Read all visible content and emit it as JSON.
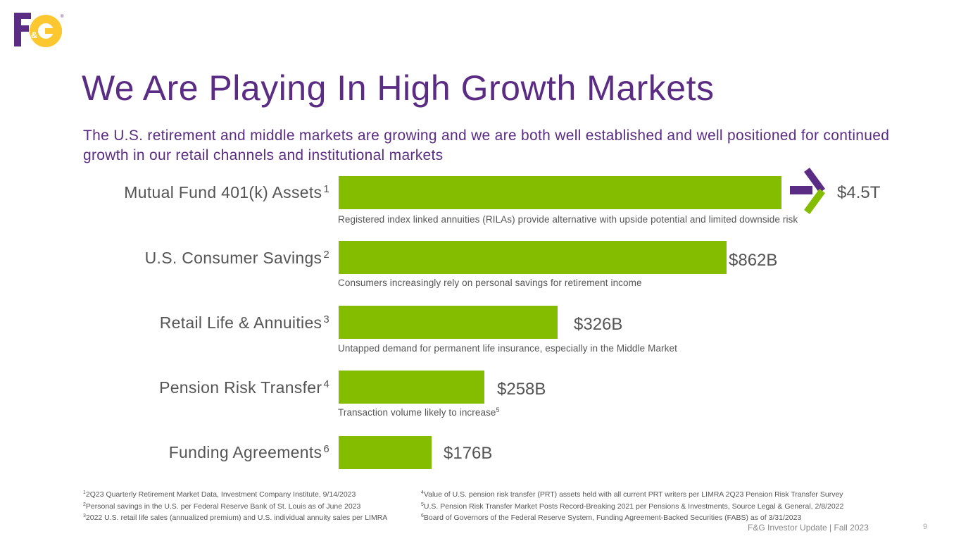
{
  "logo": {
    "text": "F&G",
    "purple": "#5b2c83",
    "gold": "#fdc82f"
  },
  "title": "We Are Playing In High Growth Markets",
  "subtitle": "The U.S. retirement and middle markets are growing and we are both well established and well positioned for continued growth in our retail channels and institutional markets",
  "colors": {
    "accent": "#5b2c83",
    "bar": "#84bd00",
    "text": "#555555"
  },
  "chart_data": {
    "type": "bar",
    "orientation": "horizontal",
    "categories": [
      "Mutual Fund 401(k) Assets",
      "U.S. Consumer Savings",
      "Retail Life & Annuities",
      "Pension Risk Transfer",
      "Funding Agreements"
    ],
    "footnote_refs": [
      "1",
      "2",
      "3",
      "4",
      "6"
    ],
    "value_labels": [
      "$4.5T",
      "$862B",
      "$326B",
      "$258B",
      "$176B"
    ],
    "notes": [
      "Registered index linked annuities (RILAs) provide alternative with upside potential and limited downside risk",
      "Consumers increasingly rely on personal savings for retirement income",
      "Untapped demand for permanent life insurance, especially in the Middle Market",
      "Transaction volume likely to increase",
      ""
    ],
    "note_footnote_refs": [
      "",
      "",
      "",
      "5",
      ""
    ],
    "title": "",
    "xlabel": "",
    "ylabel": ""
  },
  "footnotes": {
    "left": [
      {
        "num": "1",
        "text": "2Q23 Quarterly Retirement Market Data, Investment Company Institute, 9/14/2023"
      },
      {
        "num": "2",
        "text": "Personal savings in the U.S. per Federal Reserve Bank of St. Louis as of June 2023"
      },
      {
        "num": "3",
        "text": "2022 U.S. retail life sales (annualized premium) and U.S. individual annuity sales per LIMRA"
      }
    ],
    "right": [
      {
        "num": "4",
        "text": "Value of U.S. pension risk transfer (PRT) assets held with all current PRT writers per LIMRA 2Q23 Pension Risk Transfer Survey"
      },
      {
        "num": "5",
        "text": "U.S. Pension Risk Transfer Market Posts Record-Breaking 2021 per Pensions & Investments, Source Legal & General, 2/8/2022"
      },
      {
        "num": "6",
        "text": "Board of Governors of the Federal Reserve System, Funding Agreement-Backed Securities (FABS) as of 3/31/2023"
      }
    ]
  },
  "footer": {
    "text": "F&G Investor Update | Fall 2023",
    "page": "9"
  }
}
